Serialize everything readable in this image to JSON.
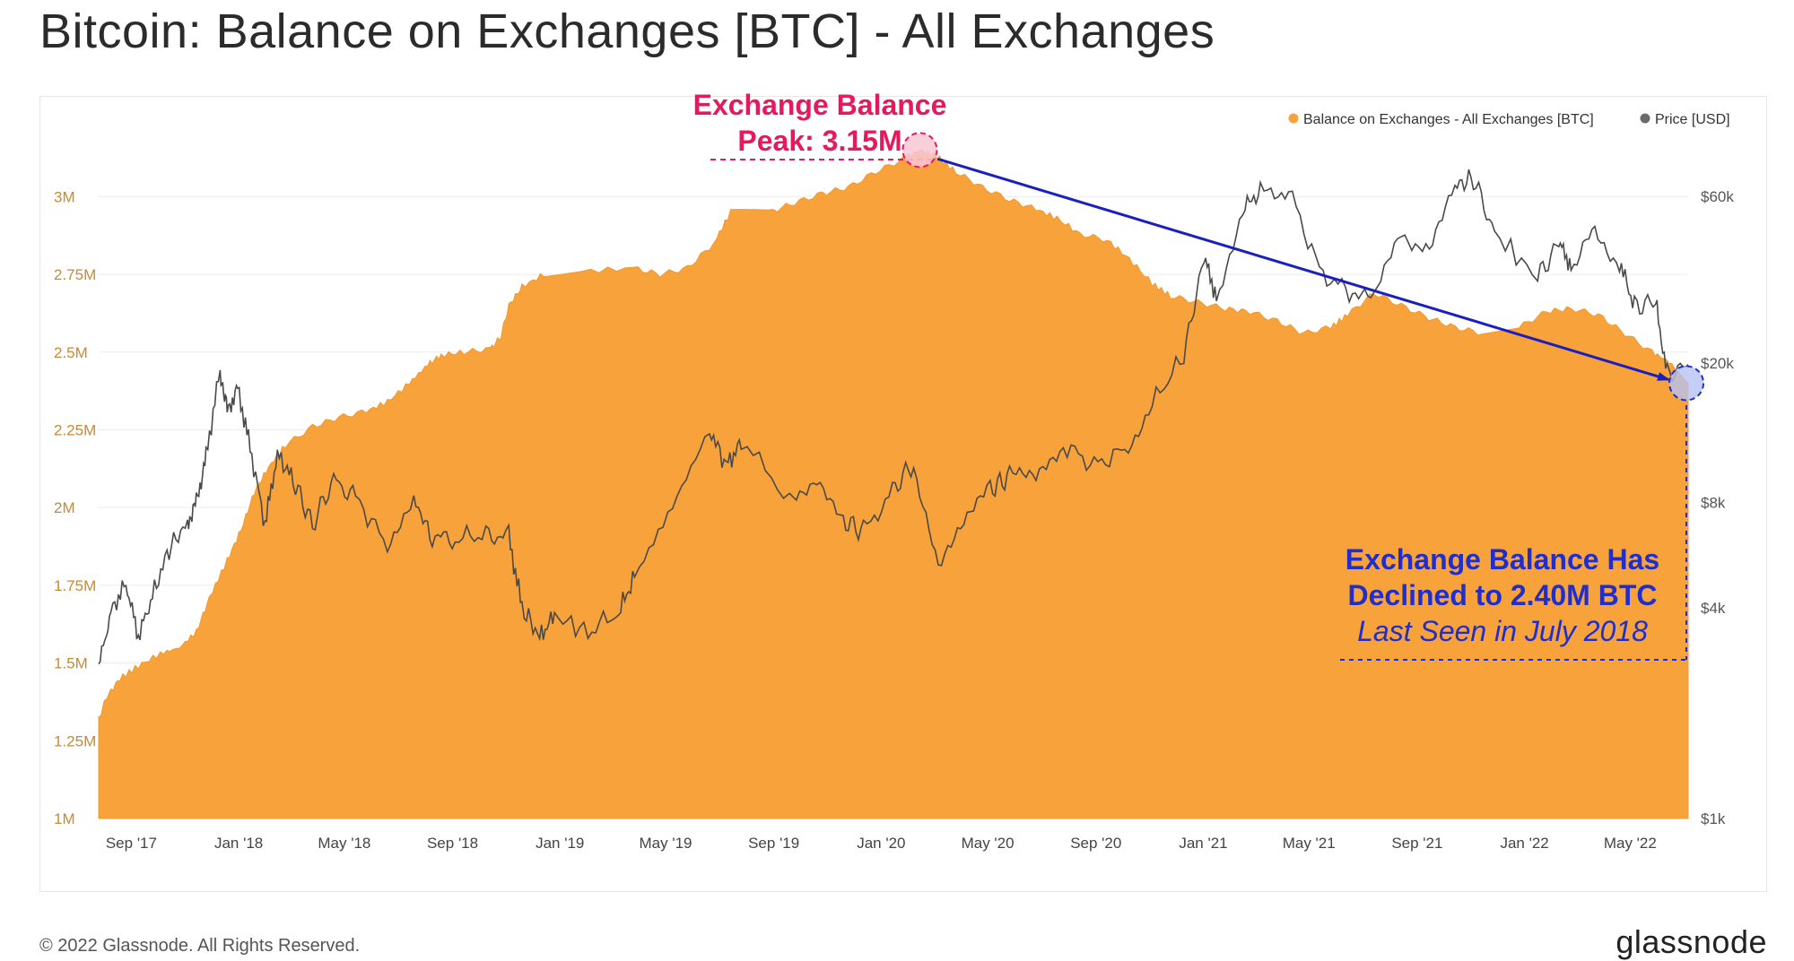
{
  "page": {
    "title": "Bitcoin: Balance on Exchanges [BTC] - All Exchanges",
    "copyright": "© 2022 Glassnode. All Rights Reserved.",
    "brand": "glassnode",
    "watermark": "glassnode"
  },
  "annotations": {
    "peak_line1": "Exchange Balance",
    "peak_line2": "Peak: 3.15M",
    "decline_line1": "Exchange Balance Has",
    "decline_line2": "Declined to 2.40M BTC",
    "decline_line3": "Last Seen in July 2018"
  },
  "colors": {
    "balance": "#f7a23b",
    "price": "#4a4a4a",
    "peak_annotation": "#e8185f",
    "decline_annotation": "#1f2ecc",
    "arrow": "#1a1fbf"
  },
  "chart_data": {
    "type": "area",
    "title": "Bitcoin: Balance on Exchanges [BTC] - All Exchanges",
    "legend": [
      "Balance on Exchanges - All Exchanges [BTC]",
      "Price [USD]"
    ],
    "legend_position": "top-right",
    "x_ticks": [
      "Sep '17",
      "Jan '18",
      "May '18",
      "Sep '18",
      "Jan '19",
      "May '19",
      "Sep '19",
      "Jan '20",
      "May '20",
      "Sep '20",
      "Jan '21",
      "May '21",
      "Sep '21",
      "Jan '22",
      "May '22"
    ],
    "x_tick_dates": [
      "2017-09-01",
      "2018-01-01",
      "2018-05-01",
      "2018-09-01",
      "2019-01-01",
      "2019-05-01",
      "2019-09-01",
      "2020-01-01",
      "2020-05-01",
      "2020-09-01",
      "2021-01-01",
      "2021-05-01",
      "2021-09-01",
      "2022-01-01",
      "2022-05-01"
    ],
    "x_range": [
      "2017-08-01",
      "2022-07-12"
    ],
    "y_left": {
      "ticks": [
        "1M",
        "1.25M",
        "1.5M",
        "1.75M",
        "2M",
        "2.25M",
        "2.5M",
        "2.75M",
        "3M"
      ],
      "tick_values": [
        1000000,
        1250000,
        1500000,
        1750000,
        2000000,
        2250000,
        2500000,
        2750000,
        3000000
      ],
      "range": [
        1000000,
        3200000
      ]
    },
    "y_right": {
      "scale": "log",
      "ticks": [
        "$1k",
        "$4k",
        "$8k",
        "$20k",
        "$60k"
      ],
      "tick_values": [
        1000,
        4000,
        8000,
        20000,
        60000
      ],
      "range": [
        1000,
        90000
      ]
    },
    "grid": true,
    "series": [
      {
        "name": "Balance on Exchanges - All Exchanges [BTC]",
        "type": "area",
        "points": [
          [
            "2017-08-01",
            1320000
          ],
          [
            "2017-08-10",
            1390000
          ],
          [
            "2017-08-25",
            1450000
          ],
          [
            "2017-09-15",
            1490000
          ],
          [
            "2017-10-10",
            1530000
          ],
          [
            "2017-11-01",
            1550000
          ],
          [
            "2017-11-20",
            1600000
          ],
          [
            "2017-12-05",
            1710000
          ],
          [
            "2017-12-25",
            1830000
          ],
          [
            "2018-01-10",
            1930000
          ],
          [
            "2018-01-25",
            2050000
          ],
          [
            "2018-02-10",
            2130000
          ],
          [
            "2018-03-01",
            2200000
          ],
          [
            "2018-04-01",
            2260000
          ],
          [
            "2018-05-01",
            2290000
          ],
          [
            "2018-06-01",
            2310000
          ],
          [
            "2018-06-25",
            2340000
          ],
          [
            "2018-07-20",
            2400000
          ],
          [
            "2018-08-10",
            2460000
          ],
          [
            "2018-08-25",
            2490000
          ],
          [
            "2018-09-20",
            2500000
          ],
          [
            "2018-10-20",
            2510000
          ],
          [
            "2018-11-01",
            2550000
          ],
          [
            "2018-11-10",
            2650000
          ],
          [
            "2018-11-25",
            2710000
          ],
          [
            "2018-12-20",
            2750000
          ],
          [
            "2019-02-01",
            2760000
          ],
          [
            "2019-04-01",
            2770000
          ],
          [
            "2019-05-01",
            2750000
          ],
          [
            "2019-06-01",
            2770000
          ],
          [
            "2019-07-01",
            2850000
          ],
          [
            "2019-07-20",
            2950000
          ],
          [
            "2019-09-01",
            2950000
          ],
          [
            "2019-10-01",
            2980000
          ],
          [
            "2019-11-01",
            3010000
          ],
          [
            "2019-12-01",
            3030000
          ],
          [
            "2020-01-01",
            3080000
          ],
          [
            "2020-02-01",
            3120000
          ],
          [
            "2020-02-20",
            3150000
          ],
          [
            "2020-03-10",
            3130000
          ],
          [
            "2020-04-01",
            3080000
          ],
          [
            "2020-05-01",
            3030000
          ],
          [
            "2020-06-01",
            2990000
          ],
          [
            "2020-07-01",
            2960000
          ],
          [
            "2020-07-25",
            2930000
          ],
          [
            "2020-08-20",
            2880000
          ],
          [
            "2020-09-20",
            2860000
          ],
          [
            "2020-10-15",
            2800000
          ],
          [
            "2020-11-10",
            2720000
          ],
          [
            "2020-12-01",
            2680000
          ],
          [
            "2021-01-01",
            2660000
          ],
          [
            "2021-02-01",
            2640000
          ],
          [
            "2021-03-01",
            2630000
          ],
          [
            "2021-04-01",
            2600000
          ],
          [
            "2021-05-01",
            2560000
          ],
          [
            "2021-06-01",
            2580000
          ],
          [
            "2021-06-20",
            2620000
          ],
          [
            "2021-07-20",
            2690000
          ],
          [
            "2021-08-20",
            2650000
          ],
          [
            "2021-09-20",
            2610000
          ],
          [
            "2021-10-20",
            2580000
          ],
          [
            "2021-11-20",
            2560000
          ],
          [
            "2022-01-01",
            2580000
          ],
          [
            "2022-02-01",
            2630000
          ],
          [
            "2022-03-01",
            2640000
          ],
          [
            "2022-04-01",
            2620000
          ],
          [
            "2022-05-01",
            2560000
          ],
          [
            "2022-06-01",
            2500000
          ],
          [
            "2022-06-20",
            2470000
          ],
          [
            "2022-07-12",
            2400000
          ]
        ]
      },
      {
        "name": "Price [USD]",
        "type": "line",
        "points": [
          [
            "2017-08-01",
            2700
          ],
          [
            "2017-08-15",
            3900
          ],
          [
            "2017-09-01",
            4700
          ],
          [
            "2017-09-15",
            3300
          ],
          [
            "2017-10-01",
            4300
          ],
          [
            "2017-10-20",
            5900
          ],
          [
            "2017-11-10",
            7000
          ],
          [
            "2017-11-20",
            8000
          ],
          [
            "2017-12-01",
            10800
          ],
          [
            "2017-12-17",
            19200
          ],
          [
            "2017-12-25",
            14500
          ],
          [
            "2018-01-06",
            17000
          ],
          [
            "2018-01-20",
            11500
          ],
          [
            "2018-02-06",
            6900
          ],
          [
            "2018-02-20",
            11000
          ],
          [
            "2018-03-10",
            9300
          ],
          [
            "2018-04-01",
            6900
          ],
          [
            "2018-04-25",
            9300
          ],
          [
            "2018-05-20",
            8200
          ],
          [
            "2018-06-25",
            6100
          ],
          [
            "2018-07-25",
            8200
          ],
          [
            "2018-08-15",
            6300
          ],
          [
            "2018-09-10",
            6300
          ],
          [
            "2018-10-15",
            6500
          ],
          [
            "2018-11-10",
            6400
          ],
          [
            "2018-11-25",
            4000
          ],
          [
            "2018-12-15",
            3300
          ],
          [
            "2019-01-01",
            3800
          ],
          [
            "2019-02-08",
            3400
          ],
          [
            "2019-03-15",
            3900
          ],
          [
            "2019-04-02",
            4900
          ],
          [
            "2019-05-15",
            7800
          ],
          [
            "2019-06-26",
            12900
          ],
          [
            "2019-07-15",
            10200
          ],
          [
            "2019-08-01",
            11800
          ],
          [
            "2019-09-25",
            8300
          ],
          [
            "2019-10-26",
            9500
          ],
          [
            "2019-11-25",
            7100
          ],
          [
            "2019-12-18",
            6600
          ],
          [
            "2020-01-20",
            8700
          ],
          [
            "2020-02-13",
            10300
          ],
          [
            "2020-03-12",
            5000
          ],
          [
            "2020-04-10",
            6900
          ],
          [
            "2020-05-10",
            8700
          ],
          [
            "2020-06-01",
            9500
          ],
          [
            "2020-07-01",
            9100
          ],
          [
            "2020-08-01",
            11700
          ],
          [
            "2020-09-05",
            10200
          ],
          [
            "2020-10-10",
            11300
          ],
          [
            "2020-11-10",
            15300
          ],
          [
            "2020-12-16",
            21000
          ],
          [
            "2021-01-08",
            40000
          ],
          [
            "2021-01-22",
            31000
          ],
          [
            "2021-02-21",
            56000
          ],
          [
            "2021-03-13",
            61000
          ],
          [
            "2021-04-14",
            63000
          ],
          [
            "2021-05-19",
            37000
          ],
          [
            "2021-06-22",
            31500
          ],
          [
            "2021-07-20",
            29800
          ],
          [
            "2021-08-20",
            48000
          ],
          [
            "2021-09-21",
            40500
          ],
          [
            "2021-10-20",
            64000
          ],
          [
            "2021-11-10",
            67500
          ],
          [
            "2021-12-04",
            47000
          ],
          [
            "2022-01-22",
            35000
          ],
          [
            "2022-02-15",
            44000
          ],
          [
            "2022-03-01",
            38000
          ],
          [
            "2022-03-28",
            47000
          ],
          [
            "2022-04-25",
            39000
          ],
          [
            "2022-05-12",
            29000
          ],
          [
            "2022-06-05",
            30000
          ],
          [
            "2022-06-18",
            18500
          ],
          [
            "2022-07-12",
            19800
          ]
        ]
      }
    ],
    "peak": {
      "date": "2020-02-20",
      "value": 3150000
    },
    "current": {
      "date": "2022-07-10",
      "value": 2400000
    }
  }
}
